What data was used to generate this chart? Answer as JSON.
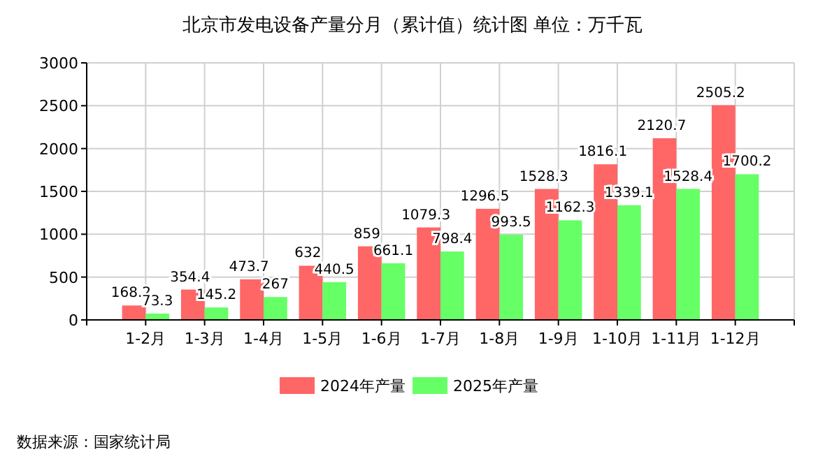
{
  "chart_data": {
    "type": "bar",
    "title": "北京市发电设备产量分月（累计值）统计图 单位：万千瓦",
    "categories": [
      "1-2月",
      "1-3月",
      "1-4月",
      "1-5月",
      "1-6月",
      "1-7月",
      "1-8月",
      "1-9月",
      "1-10月",
      "1-11月",
      "1-12月"
    ],
    "series": [
      {
        "name": "2024年产量",
        "color": "#ff6666",
        "values": [
          168.2,
          354.4,
          473.7,
          632,
          859,
          1079.3,
          1296.5,
          1528.3,
          1816.1,
          2120.7,
          2505.2
        ]
      },
      {
        "name": "2025年产量",
        "color": "#66ff66",
        "values": [
          73.3,
          145.2,
          267,
          440.5,
          661.1,
          798.4,
          993.5,
          1162.3,
          1339.1,
          1528.4,
          1700.2
        ]
      }
    ],
    "ylim": [
      0,
      3000
    ],
    "yticks": [
      0,
      500,
      1000,
      1500,
      2000,
      2500,
      3000
    ],
    "grid": true,
    "legend": "bottom",
    "data_labels": true,
    "annotations": [
      "数据来源：国家统计局"
    ]
  }
}
